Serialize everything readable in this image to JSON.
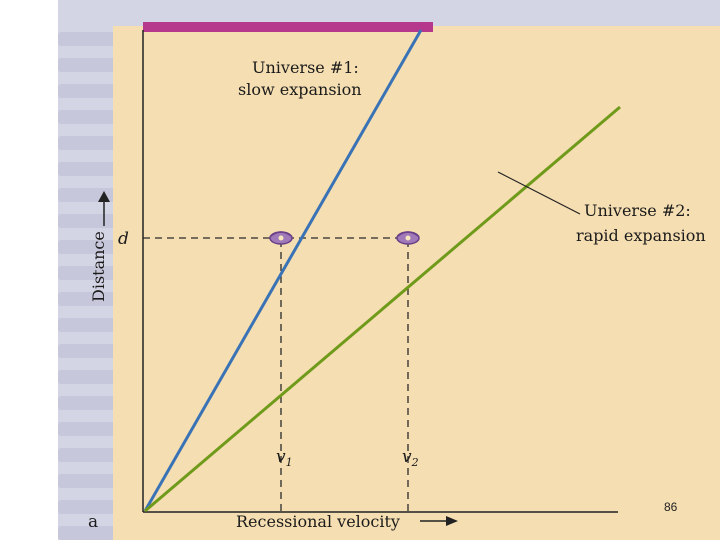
{
  "figure": {
    "universe1_label_line1": "Universe #1:",
    "universe1_label_line2": "slow expansion",
    "universe2_label_line1": "Universe #2:",
    "universe2_label_line2": "rapid expansion",
    "y_axis_label": "Distance",
    "y_marker": "d",
    "x_axis_label": "Recessional velocity",
    "x_marker1": "v",
    "x_marker1_sub": "1",
    "x_marker2": "v",
    "x_marker2_sub": "2",
    "panel_letter": "a"
  },
  "page_number": "86",
  "colors": {
    "panel_bg": "#f5deb2",
    "slow_line": "#3a73b5",
    "rapid_line": "#6f9a1a",
    "top_bar": "#b5388c",
    "galaxy": "#a07ab8"
  }
}
